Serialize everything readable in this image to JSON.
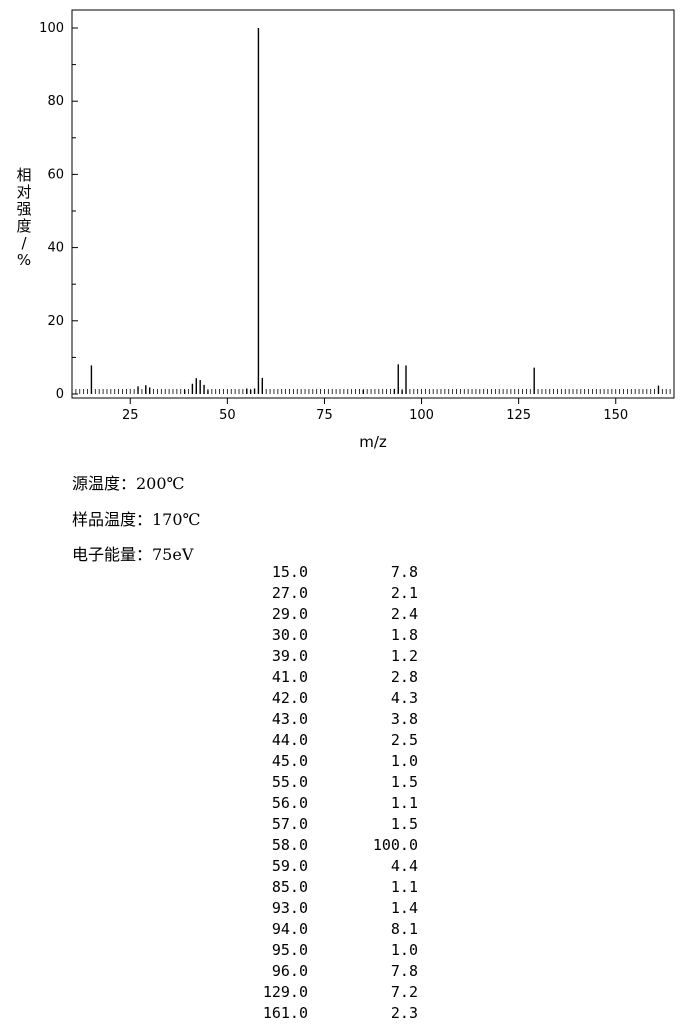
{
  "chart_data": {
    "type": "bar",
    "xlabel": "m/z",
    "ylabel": "相对强度/%",
    "xlim": [
      10,
      165
    ],
    "ylim": [
      0,
      100
    ],
    "xticks": [
      25,
      50,
      75,
      100,
      125,
      150
    ],
    "yticks": [
      0,
      20,
      40,
      60,
      80,
      100
    ],
    "peaks": [
      {
        "mz": 15.0,
        "intensity": 7.8
      },
      {
        "mz": 27.0,
        "intensity": 2.1
      },
      {
        "mz": 29.0,
        "intensity": 2.4
      },
      {
        "mz": 30.0,
        "intensity": 1.8
      },
      {
        "mz": 39.0,
        "intensity": 1.2
      },
      {
        "mz": 41.0,
        "intensity": 2.8
      },
      {
        "mz": 42.0,
        "intensity": 4.3
      },
      {
        "mz": 43.0,
        "intensity": 3.8
      },
      {
        "mz": 44.0,
        "intensity": 2.5
      },
      {
        "mz": 45.0,
        "intensity": 1.0
      },
      {
        "mz": 55.0,
        "intensity": 1.5
      },
      {
        "mz": 56.0,
        "intensity": 1.1
      },
      {
        "mz": 57.0,
        "intensity": 1.5
      },
      {
        "mz": 58.0,
        "intensity": 100.0
      },
      {
        "mz": 59.0,
        "intensity": 4.4
      },
      {
        "mz": 85.0,
        "intensity": 1.1
      },
      {
        "mz": 93.0,
        "intensity": 1.4
      },
      {
        "mz": 94.0,
        "intensity": 8.1
      },
      {
        "mz": 95.0,
        "intensity": 1.0
      },
      {
        "mz": 96.0,
        "intensity": 7.8
      },
      {
        "mz": 129.0,
        "intensity": 7.2
      },
      {
        "mz": 161.0,
        "intensity": 2.3
      }
    ]
  },
  "conditions": [
    "源温度：200℃",
    "样品温度：170℃",
    "电子能量：75eV"
  ],
  "peak_table": [
    {
      "mz": "15.0",
      "intensity": "7.8"
    },
    {
      "mz": "27.0",
      "intensity": "2.1"
    },
    {
      "mz": "29.0",
      "intensity": "2.4"
    },
    {
      "mz": "30.0",
      "intensity": "1.8"
    },
    {
      "mz": "39.0",
      "intensity": "1.2"
    },
    {
      "mz": "41.0",
      "intensity": "2.8"
    },
    {
      "mz": "42.0",
      "intensity": "4.3"
    },
    {
      "mz": "43.0",
      "intensity": "3.8"
    },
    {
      "mz": "44.0",
      "intensity": "2.5"
    },
    {
      "mz": "45.0",
      "intensity": "1.0"
    },
    {
      "mz": "55.0",
      "intensity": "1.5"
    },
    {
      "mz": "56.0",
      "intensity": "1.1"
    },
    {
      "mz": "57.0",
      "intensity": "1.5"
    },
    {
      "mz": "58.0",
      "intensity": "100.0"
    },
    {
      "mz": "59.0",
      "intensity": "4.4"
    },
    {
      "mz": "85.0",
      "intensity": "1.1"
    },
    {
      "mz": "93.0",
      "intensity": "1.4"
    },
    {
      "mz": "94.0",
      "intensity": "8.1"
    },
    {
      "mz": "95.0",
      "intensity": "1.0"
    },
    {
      "mz": "96.0",
      "intensity": "7.8"
    },
    {
      "mz": "129.0",
      "intensity": "7.2"
    },
    {
      "mz": "161.0",
      "intensity": "2.3"
    }
  ]
}
